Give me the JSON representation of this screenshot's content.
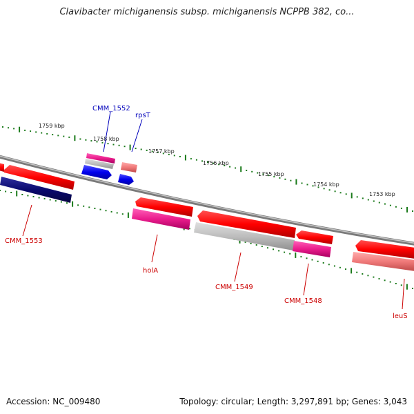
{
  "title": "Clavibacter michiganensis subsp. michiganensis NCPPB 382, co...",
  "footer": {
    "accession": "Accession: NC_009480",
    "summary": "Topology: circular; Length: 3,297,891 bp; Genes: 3,043"
  },
  "colors": {
    "forward_strand_gene": "#e60000",
    "reverse_strand_gene": "#0000e6",
    "dark_gene": "#0a0a6e",
    "pink_gene": "#e8208f",
    "gray_gene": "#b8b8b8",
    "salmon_gene": "#ee7777",
    "label_forward": "#cc0000",
    "label_reverse": "#0000bb",
    "tick": "#1a7a1a",
    "backbone": "#8a8a8a"
  },
  "kbp_labels": [
    "1759 kbp",
    "1758 kbp",
    "1757 kbp",
    "1756 kbp",
    "1755 kbp",
    "1754 kbp",
    "1753 kbp"
  ],
  "gene_labels": {
    "outer": [
      "CMM_1552",
      "rpsT"
    ],
    "inner": [
      "CMM_1553",
      "holA",
      "CMM_1549",
      "CMM_1548",
      "leuS"
    ]
  }
}
